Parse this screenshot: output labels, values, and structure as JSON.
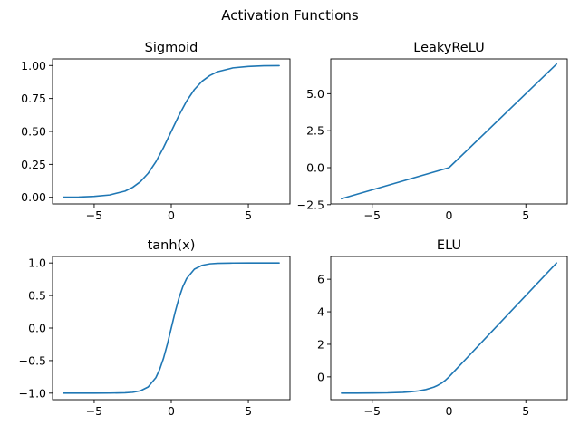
{
  "figure": {
    "suptitle": "Activation Functions"
  },
  "chart_data": [
    {
      "type": "line",
      "title": "Sigmoid",
      "xlim": [
        -7.7,
        7.7
      ],
      "ylim": [
        -0.05,
        1.05
      ],
      "xticks": [
        -5,
        0,
        5
      ],
      "xtick_labels": [
        "−5",
        "0",
        "5"
      ],
      "yticks": [
        0,
        0.25,
        0.5,
        0.75,
        1.0
      ],
      "ytick_labels": [
        "0.00",
        "0.25",
        "0.50",
        "0.75",
        "1.00"
      ],
      "line_color": "#1f77b4",
      "series": [
        {
          "x": [
            -7,
            -6,
            -5,
            -4,
            -3,
            -2.5,
            -2,
            -1.5,
            -1,
            -0.5,
            0,
            0.5,
            1,
            1.5,
            2,
            2.5,
            3,
            4,
            5,
            6,
            7
          ],
          "y": [
            0.001,
            0.002,
            0.007,
            0.018,
            0.047,
            0.076,
            0.119,
            0.182,
            0.269,
            0.378,
            0.5,
            0.622,
            0.731,
            0.818,
            0.881,
            0.924,
            0.953,
            0.982,
            0.993,
            0.998,
            0.999
          ]
        }
      ]
    },
    {
      "type": "line",
      "title": "LeakyReLU",
      "xlim": [
        -7.7,
        7.7
      ],
      "ylim": [
        -2.45,
        7.35
      ],
      "xticks": [
        -5,
        0,
        5
      ],
      "xtick_labels": [
        "−5",
        "0",
        "5"
      ],
      "yticks": [
        -2.5,
        0,
        2.5,
        5.0
      ],
      "ytick_labels": [
        "−2.5",
        "0.0",
        "2.5",
        "5.0"
      ],
      "line_color": "#1f77b4",
      "series": [
        {
          "x": [
            -7,
            0,
            7
          ],
          "y": [
            -2.1,
            0,
            7
          ]
        }
      ]
    },
    {
      "type": "line",
      "title": "tanh(x)",
      "xlim": [
        -7.7,
        7.7
      ],
      "ylim": [
        -1.1,
        1.1
      ],
      "xticks": [
        -5,
        0,
        5
      ],
      "xtick_labels": [
        "−5",
        "0",
        "5"
      ],
      "yticks": [
        -1.0,
        -0.5,
        0,
        0.5,
        1.0
      ],
      "ytick_labels": [
        "−1.0",
        "−0.5",
        "0.0",
        "0.5",
        "1.0"
      ],
      "line_color": "#1f77b4",
      "series": [
        {
          "x": [
            -7,
            -5,
            -4,
            -3,
            -2.5,
            -2,
            -1.5,
            -1,
            -0.75,
            -0.5,
            -0.25,
            0,
            0.25,
            0.5,
            0.75,
            1,
            1.5,
            2,
            2.5,
            3,
            4,
            5,
            7
          ],
          "y": [
            -1.0,
            -1.0,
            -0.999,
            -0.995,
            -0.987,
            -0.964,
            -0.905,
            -0.762,
            -0.635,
            -0.462,
            -0.245,
            0,
            0.245,
            0.462,
            0.635,
            0.762,
            0.905,
            0.964,
            0.987,
            0.995,
            0.999,
            1.0,
            1.0
          ]
        }
      ]
    },
    {
      "type": "line",
      "title": "ELU",
      "xlim": [
        -7.7,
        7.7
      ],
      "ylim": [
        -1.4,
        7.4
      ],
      "xticks": [
        -5,
        0,
        5
      ],
      "xtick_labels": [
        "−5",
        "0",
        "5"
      ],
      "yticks": [
        0,
        2,
        4,
        6
      ],
      "ytick_labels": [
        "0",
        "2",
        "4",
        "6"
      ],
      "line_color": "#1f77b4",
      "series": [
        {
          "x": [
            -7,
            -6,
            -5,
            -4,
            -3,
            -2.5,
            -2,
            -1.5,
            -1,
            -0.75,
            -0.5,
            -0.25,
            0,
            7
          ],
          "y": [
            -0.999,
            -0.998,
            -0.993,
            -0.982,
            -0.95,
            -0.918,
            -0.865,
            -0.777,
            -0.632,
            -0.528,
            -0.393,
            -0.221,
            0,
            7
          ]
        }
      ]
    }
  ]
}
